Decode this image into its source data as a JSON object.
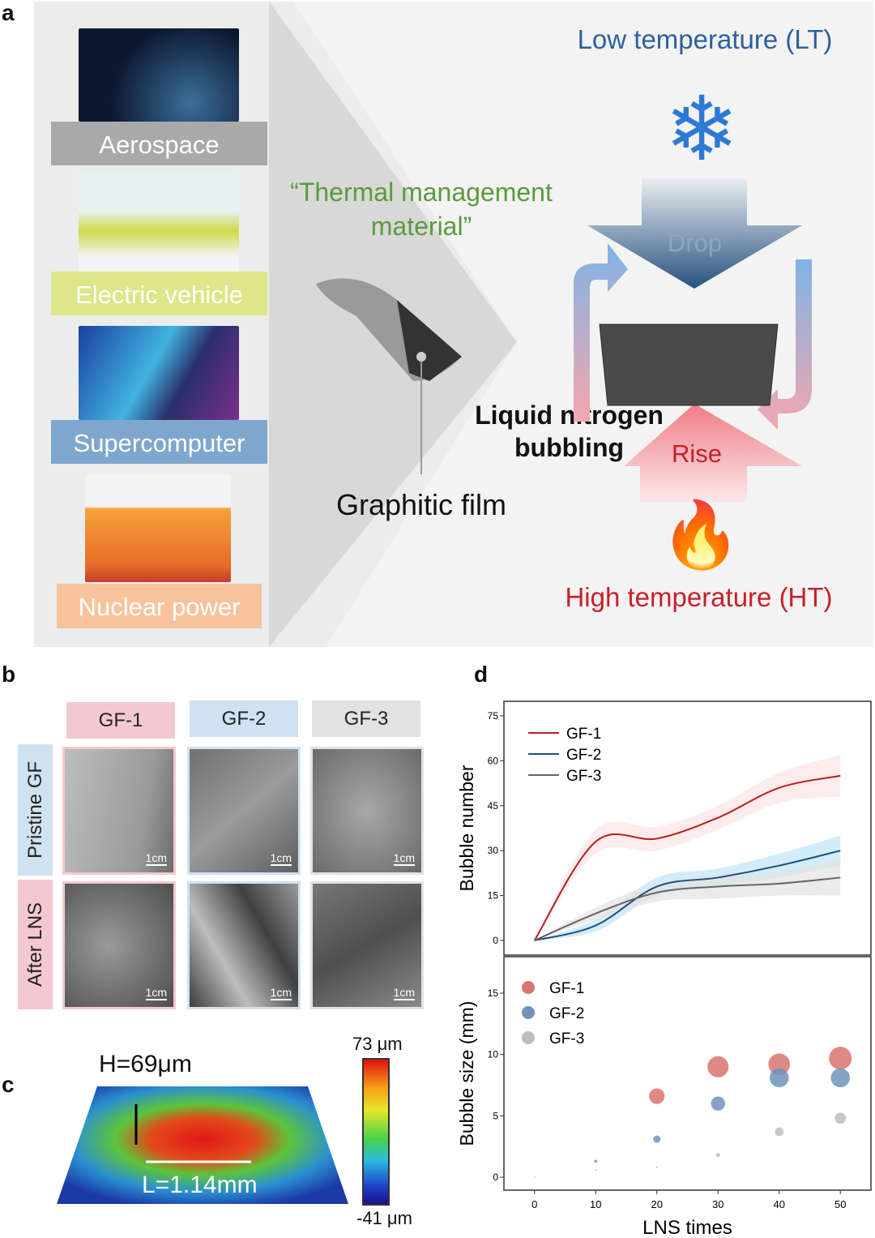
{
  "panel_a": {
    "label": "a",
    "applications": [
      {
        "label": "Aerospace",
        "color": "#a9a9a9"
      },
      {
        "label": "Electric vehicle",
        "color": "#dde688"
      },
      {
        "label": "Supercomputer",
        "color": "#7fa7cd"
      },
      {
        "label": "Nuclear power",
        "color": "#f7c39c"
      }
    ],
    "quote": "“Thermal management material”",
    "film_label": "Graphitic film",
    "process_label": "Liquid nitrogen bubbling",
    "low_temp": "Low temperature (LT)",
    "high_temp": "High temperature (HT)",
    "drop": "Drop",
    "rise": "Rise",
    "colors": {
      "low": "#2d5fa0",
      "high": "#c8202a",
      "quote": "#5a9b3c"
    }
  },
  "panel_b": {
    "label": "b",
    "columns": [
      "GF-1",
      "GF-2",
      "GF-3"
    ],
    "rows": [
      "Pristine GF",
      "After LNS"
    ],
    "scale_bar": "1cm"
  },
  "panel_c": {
    "label": "c",
    "height": "H=69μm",
    "length": "L=1.14mm",
    "cbar_max": "73 μm",
    "cbar_min": "-41 μm"
  },
  "panel_d": {
    "label": "d"
  },
  "chart_data": [
    {
      "type": "line",
      "ylabel": "Bubble number",
      "ylim": [
        0,
        75
      ],
      "yticks": [
        0,
        15,
        30,
        45,
        60,
        75
      ],
      "xlim": [
        -5,
        55
      ],
      "legend": "top-left",
      "x": [
        0,
        10,
        20,
        30,
        40,
        50
      ],
      "series": [
        {
          "name": "GF-1",
          "color": "#b81d1d",
          "band": "#fde3e3",
          "values": [
            0,
            33,
            34,
            41,
            51,
            55
          ],
          "err": [
            0,
            4,
            4,
            4,
            5,
            7
          ]
        },
        {
          "name": "GF-2",
          "color": "#1f4e79",
          "band": "#bfe6f7",
          "values": [
            0,
            5,
            18,
            21,
            25,
            30
          ],
          "err": [
            0,
            2,
            3,
            3,
            4,
            5
          ]
        },
        {
          "name": "GF-3",
          "color": "#666666",
          "band": "#e3e3e3",
          "values": [
            0,
            9,
            16,
            18,
            19,
            21
          ],
          "err": [
            0,
            2,
            3,
            4,
            4,
            6
          ]
        }
      ]
    },
    {
      "type": "scatter",
      "xlabel": "LNS times",
      "ylabel": "Bubble size (mm)",
      "ylim": [
        -1,
        17.5
      ],
      "yticks": [
        0,
        5,
        10,
        15
      ],
      "xlim": [
        -5,
        55
      ],
      "xticks": [
        0,
        10,
        20,
        30,
        40,
        50
      ],
      "legend": "top-left",
      "series": [
        {
          "name": "GF-1",
          "color": "#d9746f",
          "x": [
            10,
            20,
            30,
            40,
            50
          ],
          "values": [
            1.3,
            6.6,
            9.0,
            9.2,
            9.7
          ]
        },
        {
          "name": "GF-2",
          "color": "#6f94ba",
          "x": [
            20,
            30,
            40,
            50
          ],
          "values": [
            3.1,
            6.0,
            8.1,
            8.1
          ]
        },
        {
          "name": "GF-3",
          "color": "#bdbdbd",
          "x": [
            0,
            10,
            20,
            30,
            40,
            50
          ],
          "values": [
            0,
            0.6,
            0.8,
            1.8,
            3.7,
            4.8
          ]
        }
      ]
    }
  ]
}
